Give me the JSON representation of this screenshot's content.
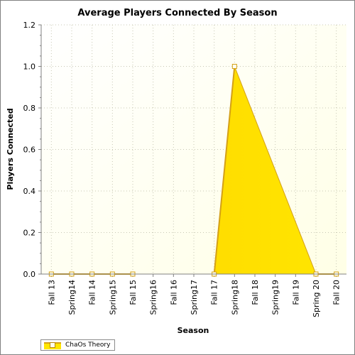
{
  "chart_data": {
    "type": "area",
    "title": "Average Players Connected By Season",
    "xlabel": "Season",
    "ylabel": "Players Connected",
    "categories": [
      "Fall 13",
      "Spring14",
      "Fall 14",
      "Spring15",
      "Fall 15",
      "Spring16",
      "Fall 16",
      "Spring17",
      "Fall 17",
      "Spring18",
      "Fall 18",
      "Spring19",
      "Fall 19",
      "Spring 20",
      "Fall 20"
    ],
    "series": [
      {
        "name": "ChaOs Theory",
        "values": [
          0,
          0,
          0,
          0,
          0,
          null,
          null,
          null,
          0,
          1.0,
          null,
          null,
          null,
          0,
          0
        ]
      }
    ],
    "ylim": [
      0,
      1.2
    ],
    "yticks": [
      "0.0",
      "0.2",
      "0.4",
      "0.6",
      "0.8",
      "1.0",
      "1.2"
    ],
    "grid": true,
    "legend": "bottom-left",
    "colors": {
      "fill": "#ffe600",
      "line": "#d4a017",
      "marker_fill": "#fffff0",
      "plot_bg": "#ffffe6",
      "grid": "#c8c8b4"
    }
  }
}
